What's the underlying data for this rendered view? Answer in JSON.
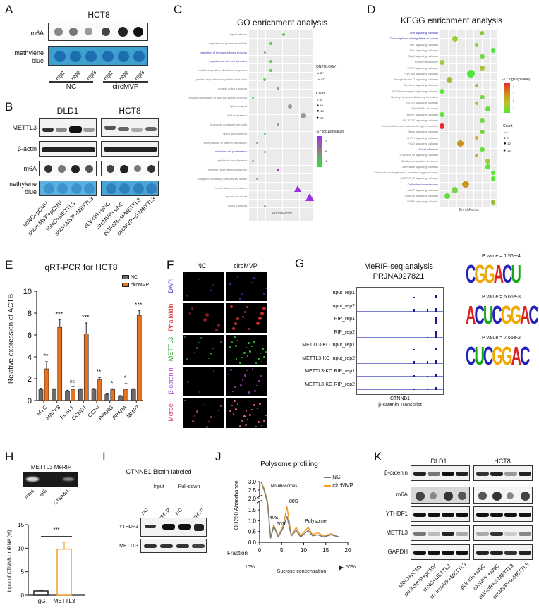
{
  "panels": {
    "A": {
      "label": "A",
      "title": "HCT8",
      "rows": [
        "m6A",
        "methylene blue"
      ],
      "lanes": [
        "rep1",
        "rep2",
        "rep3",
        "rep1",
        "rep2",
        "rep3"
      ],
      "groups": [
        "NC",
        "circMVP"
      ]
    },
    "B": {
      "label": "B",
      "cell_lines": [
        "DLD1",
        "HCT8"
      ],
      "rows": [
        "METTL3",
        "β-actin",
        "m6A",
        "methylene blue"
      ],
      "lanes_dld1": [
        "shNC+pCMV",
        "shcircMVP+pCMV",
        "shNC+METTL3",
        "shcircMVP+METTL3"
      ],
      "lanes_hct8": [
        "pLV-ciR+siNC",
        "circMVP+siNC",
        "pLV-ciR+si-METTL3",
        "circMVP+si-METTL3"
      ]
    },
    "C": {
      "label": "C",
      "title": "GO enrichment analysis",
      "xlabel": "EnrichFactor",
      "legend_ontology_title": "ONTOLOGY",
      "legend_ontology": [
        "BP",
        "CC"
      ],
      "legend_count_title": "Count",
      "legend_count": [
        "35",
        "40",
        "45",
        "50"
      ],
      "legend_color_title": "-1 * log10(pvalue)",
      "legend_color_ticks": [
        "2",
        "6",
        "4"
      ]
    },
    "D": {
      "label": "D",
      "title": "KEGG enrichment analysis",
      "xlabel": "EnrichFactor",
      "legend_color_title": "-1 * log10(pvalue)",
      "legend_color_ticks": [
        "4",
        "3",
        "2",
        "1"
      ],
      "legend_count_title": "Count",
      "legend_count": [
        "6",
        "9",
        "12",
        "15"
      ]
    },
    "E": {
      "label": "E",
      "title": "qRT-PCR for HCT8",
      "ylabel": "Relative expression of ACTB",
      "legend": [
        "NC",
        "circMVP"
      ]
    },
    "F": {
      "label": "F",
      "columns": [
        "NC",
        "circMVP"
      ],
      "rows": [
        "DAPI",
        "Phalloidin",
        "METTL3",
        "β-catenin",
        "Merge"
      ]
    },
    "G": {
      "label": "G",
      "title_line1": "MeRIP-seq analysis",
      "title_line2": "PRJNA927821",
      "tracks": [
        "Input_rep1",
        "Input_rep2",
        "RIP_rep1",
        "RIP_rep2",
        "METTL3-KO Input_rep1",
        "METTL3-KO Input_rep2",
        "METTL3-KO RIP_rep1",
        "METTL3-KO RIP_rep2"
      ],
      "gene": "CTNNB1",
      "gene_sub": "β-catenin Transcript",
      "motifs": [
        {
          "pvalue": "P value = 1.56e-4",
          "seq": "CGGACU"
        },
        {
          "pvalue": "P value = 5.66e-3",
          "seq": "ACUCGGAC"
        },
        {
          "pvalue": "P value = 7.66e-2",
          "seq": "CUCGGAC"
        }
      ]
    },
    "H": {
      "label": "H",
      "gel_title": "METTL3 MeRIP",
      "gel_lanes": [
        "Input",
        "IgG",
        "CTNNB1"
      ],
      "ylabel": "Input of CTNNB1 mRNA (%)",
      "sig": "***"
    },
    "I": {
      "label": "I",
      "title": "CTNNB1 Biotin-labeled",
      "groups": [
        "Input",
        "Pull-down"
      ],
      "lanes": [
        "NC",
        "circMVP",
        "NC",
        "circMVP"
      ],
      "rows": [
        "YTHDF1",
        "METTL3"
      ]
    },
    "J": {
      "label": "J",
      "title": "Polysome profiling",
      "ylabel": "OD260 Absorbance",
      "xlabel_prefix": "Fraction",
      "annotations": [
        "No-ribosomes",
        "40S",
        "60S",
        "80S",
        "Polysome"
      ],
      "legend": [
        "NC",
        "circMVP"
      ],
      "gradient_start": "10%",
      "gradient_end": "50%",
      "gradient_label": "Sucrose concentration"
    },
    "K": {
      "label": "K",
      "cell_lines": [
        "DLD1",
        "HCT8"
      ],
      "rows": [
        "β-catenin",
        "m6A",
        "YTHDF1",
        "METTL3",
        "GAPDH"
      ],
      "lanes_dld1": [
        "shNC+pCMV",
        "shcircMVP+pCMV",
        "shNC+METTL3",
        "shcircMVP+METTL3"
      ],
      "lanes_hct8": [
        "pLV-ciR+siNC",
        "circMVP+siNC",
        "pLV-ciR+si-METTL3",
        "circMVP+si-METTL3"
      ]
    }
  },
  "colors": {
    "nc_bar": "#6b6b6b",
    "circ_bar": "#e8731f",
    "go_link": "#3333aa",
    "methylene": "#3f9fd0"
  },
  "chart_data": [
    {
      "type": "bar",
      "panel": "E",
      "title": "qRT-PCR for HCT8",
      "xlabel": "",
      "ylabel": "Relative expression of ACTB",
      "ylim": [
        0,
        10
      ],
      "yticks": [
        0,
        2,
        4,
        6,
        8,
        10
      ],
      "categories": [
        "MYC",
        "MAPK8",
        "FOSL1",
        "CCND1",
        "CCN4",
        "PPARG",
        "PPARA",
        "MMP7"
      ],
      "series": [
        {
          "name": "NC",
          "values": [
            1.0,
            1.0,
            0.85,
            1.0,
            1.0,
            0.55,
            0.4,
            1.0
          ],
          "errors": [
            0.12,
            0.08,
            0.1,
            0.08,
            0.1,
            0.12,
            0.06,
            0.08
          ]
        },
        {
          "name": "circMVP",
          "values": [
            2.9,
            6.7,
            1.0,
            6.1,
            1.9,
            1.0,
            1.0,
            7.8
          ],
          "errors": [
            0.65,
            0.7,
            0.28,
            1.0,
            0.22,
            0.08,
            0.55,
            0.45
          ]
        }
      ],
      "significance": [
        "**",
        "***",
        "ns",
        "***",
        "**",
        "*",
        "*",
        "***"
      ]
    },
    {
      "type": "bar",
      "panel": "H",
      "title": "",
      "ylabel": "Input of CTNNB1 mRNA (%)",
      "ylim": [
        0,
        15
      ],
      "yticks": [
        0,
        5,
        10,
        15
      ],
      "categories": [
        "IgG",
        "METTL3"
      ],
      "values": [
        0.9,
        9.8
      ],
      "errors": [
        0.2,
        1.5
      ],
      "significance": "***"
    },
    {
      "type": "line",
      "panel": "J",
      "title": "Polysome profiling",
      "xlabel": "Fraction",
      "ylabel": "OD260 Absorbance",
      "xlim": [
        0,
        20
      ],
      "xticks": [
        0,
        5,
        10,
        15,
        20
      ],
      "yticks": [
        0.0,
        0.5,
        1.0,
        1.5,
        2.0,
        2.5,
        3.0
      ],
      "axis_break": [
        1.9,
        2.0
      ],
      "x": [
        0.3,
        1,
        1.8,
        2.5,
        3.2,
        4.2,
        5.3,
        6.2,
        7.2,
        8.3,
        9.3,
        11,
        12,
        13.2,
        14.5,
        16.2,
        18
      ],
      "series": [
        {
          "name": "NC",
          "values": [
            3.0,
            2.5,
            1.8,
            0.2,
            0.75,
            0.25,
            0.65,
            1.2,
            0.3,
            0.55,
            0.25,
            0.55,
            0.3,
            0.35,
            0.25,
            0.35,
            0.25
          ]
        },
        {
          "name": "circMVP",
          "values": [
            3.0,
            2.6,
            1.9,
            0.2,
            0.8,
            0.3,
            0.75,
            1.65,
            0.3,
            0.7,
            0.3,
            0.7,
            0.35,
            0.45,
            0.3,
            0.4,
            0.25
          ]
        }
      ],
      "annotations": [
        "No-ribosomes",
        "40S",
        "60S",
        "80S",
        "Polysome"
      ]
    },
    {
      "type": "scatter",
      "panel": "C",
      "title": "GO enrichment analysis",
      "xlabel": "EnrichFactor",
      "categories": [
        "signal release",
        "regulation of peptidase activity",
        "regulation of immune effector process",
        "regulation of cell-cell adhesion",
        "positive regulation of defense response",
        "positive regulation of cytokine production",
        "organic anion transport",
        "negative regulation of immune system process",
        "lipid transport",
        "lipid localization",
        "leukocyte mediated immunity",
        "gland development",
        "external side of plasma membrane",
        "epithelial cell proliferation",
        "epidermis development",
        "defense response to bacterium",
        "collagen-containing extracellular matrix",
        "apical plasma membrane",
        "apical part of cell",
        "anion transport"
      ],
      "x_rel": [
        0.55,
        0.34,
        0.24,
        0.34,
        0.34,
        0.24,
        0.45,
        0.05,
        0.65,
        0.86,
        0.45,
        0.24,
        0.12,
        0.24,
        0.05,
        0.45,
        0.12,
        0.76,
        0.96,
        0.24
      ],
      "ontology": [
        "BP",
        "BP",
        "BP",
        "BP",
        "BP",
        "BP",
        "BP",
        "BP",
        "BP",
        "BP",
        "BP",
        "BP",
        "CC",
        "BP",
        "BP",
        "BP",
        "CC",
        "CC",
        "CC",
        "BP"
      ],
      "size": [
        "36",
        "36",
        "35",
        "36",
        "36",
        "36",
        "36",
        "35",
        "40",
        "45",
        "36",
        "35",
        "35",
        "35",
        "35",
        "36",
        "35",
        "45",
        "50",
        "35"
      ],
      "color": [
        "green",
        "green",
        "gray",
        "green",
        "green",
        "green",
        "gray",
        "green",
        "gray",
        "gray",
        "gray",
        "green",
        "gray",
        "green",
        "gray",
        "purple",
        "gray",
        "purple",
        "purple",
        "gray"
      ],
      "highlighted": [
        "regulation of immune effector process",
        "regulation of cell-cell adhesion",
        "epithelial cell proliferation"
      ]
    },
    {
      "type": "scatter",
      "panel": "D",
      "title": "KEGG enrichment analysis",
      "xlabel": "EnrichFactor",
      "categories": [
        "Wnt signaling pathway",
        "Transcriptional misregulation in cancer",
        "TNF signaling pathway",
        "Ras signaling pathway",
        "Rap1 signaling pathway",
        "Purine metabolism",
        "PPAR signaling pathway",
        "PI3K-Akt signaling pathway",
        "Phospholipase D signaling pathway",
        "Oxytocin signaling pathway",
        "NOD-like receptor signaling pathway",
        "Neutrophil extracellular trap formation",
        "mTOR signaling pathway",
        "MicroRNAs in cancer",
        "MAPK signaling pathway",
        "JAK-STAT signaling pathway",
        "Intestinal immune network for IgA production",
        "Hippo signaling pathway",
        "GnRH signaling pathway",
        "FoxO signaling pathway",
        "Focal adhesion",
        "Fc epsilon RI signaling pathway",
        "Choline metabolism in cancer",
        "Chemokine signaling pathway",
        "Chemical carcinogenesis - reactive oxygen species",
        "cGMP-PKG signaling pathway",
        "Cell adhesion molecules",
        "cAMP signaling pathway",
        "Calcium signaling pathway",
        "AMPK signaling pathway"
      ],
      "x_rel": [
        0.75,
        0.25,
        0.65,
        0.95,
        0.75,
        0.02,
        0.75,
        0.55,
        0.15,
        0.65,
        0.02,
        0.75,
        0.65,
        0.85,
        0.02,
        0.75,
        0.02,
        0.75,
        0.65,
        0.35,
        0.75,
        0.65,
        0.85,
        0.85,
        0.95,
        0.95,
        0.45,
        0.25,
        0.12,
        0.95
      ],
      "size": [
        6,
        10,
        5,
        8,
        7,
        9,
        7,
        15,
        10,
        5,
        9,
        7,
        5,
        8,
        9,
        7,
        9,
        7,
        5,
        12,
        7,
        5,
        8,
        8,
        8,
        8,
        13,
        11,
        10,
        8
      ],
      "highlighted": [
        "Wnt signaling pathway",
        "Transcriptional misregulation in cancer",
        "Focal adhesion",
        "Cell adhesion molecules"
      ]
    }
  ]
}
